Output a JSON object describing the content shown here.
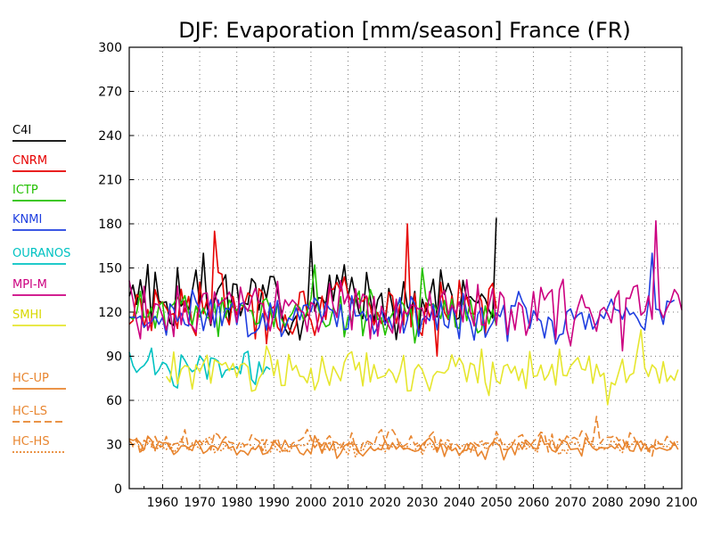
{
  "chart_data": {
    "type": "line",
    "title": "DJF: Evaporation [mm/season] France (FR)",
    "xlabel": "",
    "ylabel": "",
    "xlim": [
      1951,
      2100
    ],
    "ylim": [
      0,
      300
    ],
    "x_ticks": [
      1960,
      1970,
      1980,
      1990,
      2000,
      2010,
      2020,
      2030,
      2040,
      2050,
      2060,
      2070,
      2080,
      2090,
      2100
    ],
    "y_ticks": [
      0,
      30,
      60,
      90,
      120,
      150,
      180,
      210,
      240,
      270,
      300
    ],
    "grid": true,
    "legend_position": "left",
    "series": [
      {
        "name": "C4I",
        "color": "#000000",
        "dash": "",
        "x_start": 1951,
        "x_end": 2050,
        "mean": 130,
        "amp": 16,
        "seed": 3,
        "extremes": [
          [
            2000,
            168
          ],
          [
            2050,
            184
          ]
        ]
      },
      {
        "name": "CNRM",
        "color": "#e60000",
        "dash": "",
        "x_start": 1951,
        "x_end": 2050,
        "mean": 124,
        "amp": 15,
        "seed": 7,
        "extremes": [
          [
            1974,
            175
          ],
          [
            2026,
            180
          ],
          [
            2034,
            90
          ]
        ]
      },
      {
        "name": "ICTP",
        "color": "#22c000",
        "dash": "",
        "x_start": 1951,
        "x_end": 2050,
        "mean": 120,
        "amp": 11,
        "seed": 11,
        "extremes": [
          [
            2001,
            152
          ],
          [
            2030,
            150
          ]
        ]
      },
      {
        "name": "KNMI",
        "color": "#1f3fe0",
        "dash": "",
        "x_start": 1951,
        "x_end": 2098,
        "mean": 118,
        "amp": 11,
        "seed": 17,
        "extremes": [
          [
            2092,
            160
          ]
        ]
      },
      {
        "name": "OURANOS",
        "color": "#00c2c2",
        "dash": "",
        "x_start": 1951,
        "x_end": 1989,
        "mean": 82,
        "amp": 8,
        "seed": 23,
        "extremes": [
          [
            1963,
            70
          ]
        ]
      },
      {
        "name": "MPI-M",
        "color": "#cc0080",
        "dash": "",
        "x_start": 1951,
        "x_end": 2100,
        "mean": 121,
        "amp": 14,
        "seed": 29,
        "extremes": [
          [
            2093,
            182
          ]
        ]
      },
      {
        "name": "SMHI",
        "color": "#e6e62e",
        "dash": "",
        "x_start": 1961,
        "x_end": 2099,
        "mean": 80,
        "amp": 10,
        "seed": 31,
        "extremes": [
          [
            2089,
            108
          ],
          [
            2080,
            57
          ]
        ]
      },
      {
        "name": "HC-UP",
        "color": "#e8852f",
        "dash": "",
        "x_start": 1951,
        "x_end": 2099,
        "mean": 28,
        "amp": 5,
        "seed": 37,
        "extremes": []
      },
      {
        "name": "HC-LS",
        "color": "#e8852f",
        "dash": "8 4",
        "x_start": 1951,
        "x_end": 2099,
        "mean": 31,
        "amp": 6,
        "seed": 41,
        "extremes": [
          [
            2077,
            49
          ]
        ]
      },
      {
        "name": "HC-HS",
        "color": "#e8852f",
        "dash": "2 2",
        "x_start": 1951,
        "x_end": 2099,
        "mean": 29,
        "amp": 4,
        "seed": 43,
        "extremes": []
      }
    ]
  }
}
